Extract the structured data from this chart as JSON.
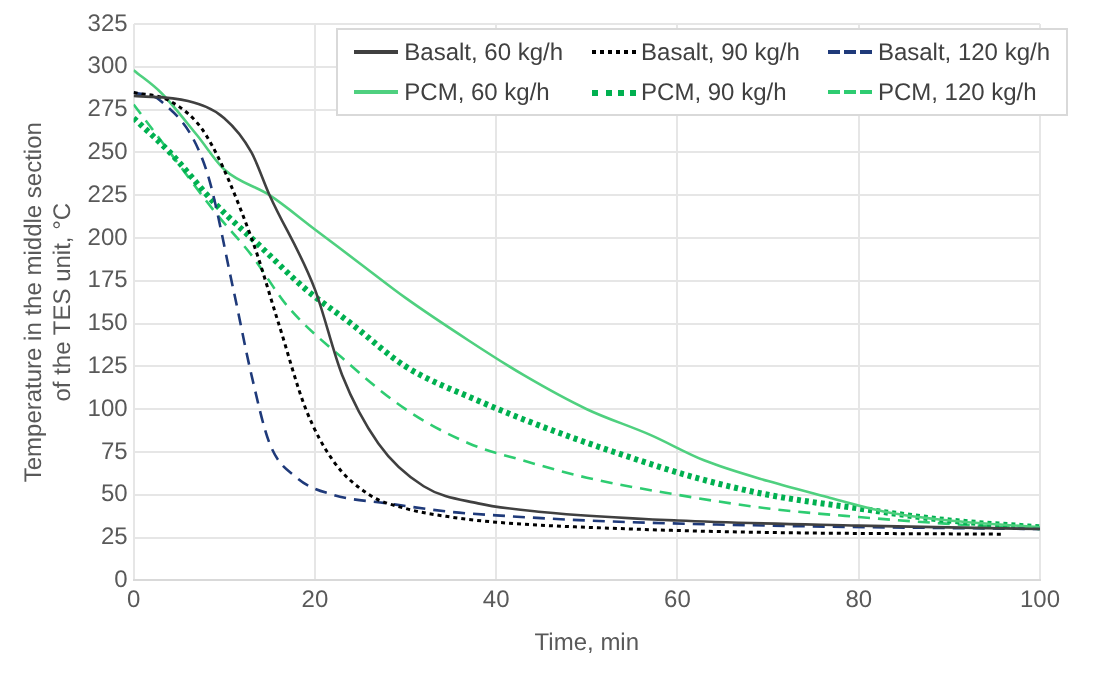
{
  "chart_data": {
    "type": "line",
    "xlabel": "Time, min",
    "ylabel": "Temperature in the middle section of the TES unit, °C",
    "xlim": [
      0,
      100
    ],
    "xticks": [
      0,
      20,
      40,
      60,
      80,
      100
    ],
    "ylim": [
      0,
      325
    ],
    "yticks": [
      0,
      25,
      50,
      75,
      100,
      125,
      150,
      175,
      200,
      225,
      250,
      275,
      300,
      325
    ],
    "grid": true,
    "legend": "top right",
    "marker": "none",
    "series": [
      {
        "name": "Basalt, 60 kg/h",
        "color": "#404040",
        "line_style": "solid",
        "x": [
          0,
          6,
          10,
          13,
          15,
          20,
          23,
          27,
          32,
          38,
          45,
          60,
          80,
          100
        ],
        "values": [
          283,
          280,
          270,
          250,
          225,
          170,
          120,
          80,
          55,
          45,
          40,
          35,
          32,
          30
        ]
      },
      {
        "name": "Basalt, 90 kg/h",
        "color": "#000000",
        "line_style": "dotted",
        "x": [
          0,
          4,
          8,
          13,
          16,
          19,
          22,
          26,
          30,
          35,
          40,
          55,
          70,
          96
        ],
        "values": [
          285,
          280,
          260,
          200,
          150,
          100,
          70,
          50,
          42,
          37,
          34,
          30,
          28,
          27
        ]
      },
      {
        "name": "Basalt, 120 kg/h",
        "color": "#1f3a7a",
        "line_style": "dashed",
        "x": [
          0,
          3,
          8,
          11,
          13,
          15,
          18,
          22,
          28,
          35,
          40,
          50,
          70,
          100
        ],
        "values": [
          285,
          280,
          240,
          170,
          120,
          80,
          60,
          50,
          45,
          40,
          38,
          35,
          32,
          30
        ]
      },
      {
        "name": "PCM, 60 kg/h",
        "color": "#4fd07f",
        "line_style": "solid",
        "x": [
          0,
          3,
          7,
          10,
          15,
          20,
          25,
          30,
          37,
          43,
          50,
          57,
          63,
          70,
          77,
          83,
          90,
          100
        ],
        "values": [
          298,
          285,
          260,
          240,
          225,
          205,
          185,
          165,
          140,
          120,
          100,
          85,
          70,
          58,
          48,
          40,
          35,
          31
        ]
      },
      {
        "name": "PCM, 90 kg/h",
        "color": "#00b050",
        "line_style": "dotted",
        "x": [
          0,
          4,
          9,
          14,
          19,
          24,
          30,
          38,
          45,
          53,
          62,
          70,
          80,
          90,
          100
        ],
        "values": [
          270,
          250,
          220,
          195,
          170,
          150,
          125,
          105,
          90,
          75,
          60,
          50,
          42,
          35,
          31
        ]
      },
      {
        "name": "PCM, 120 kg/h",
        "color": "#2ecc71",
        "line_style": "dashed",
        "x": [
          0,
          4,
          9,
          13,
          17,
          23,
          30,
          37,
          43,
          50,
          60,
          70,
          80,
          90,
          100
        ],
        "values": [
          278,
          250,
          215,
          190,
          160,
          130,
          100,
          80,
          70,
          60,
          50,
          42,
          37,
          33,
          30
        ]
      }
    ]
  }
}
